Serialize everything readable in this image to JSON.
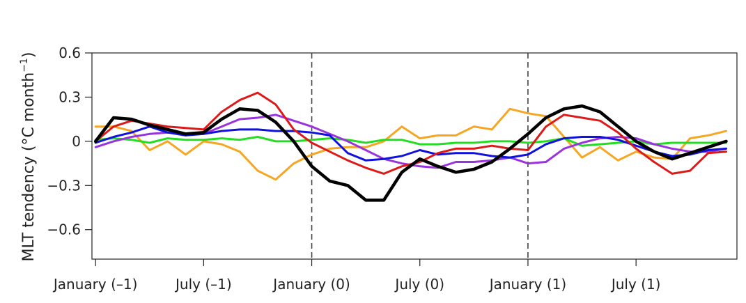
{
  "chart_data": {
    "type": "line",
    "ylabel_main": "MLT tendency (°C month",
    "ylabel_sup": "−1",
    "ylabel_close": ")",
    "ylim": [
      -0.8,
      0.6
    ],
    "yticks": [
      {
        "value": 0.6,
        "label": "0.6"
      },
      {
        "value": 0.3,
        "label": "0.3"
      },
      {
        "value": 0,
        "label": "0"
      },
      {
        "value": -0.3,
        "label": "−0.3"
      },
      {
        "value": -0.6,
        "label": "−0.6"
      }
    ],
    "xlim": [
      -0.2,
      35.6
    ],
    "xticks": [
      {
        "value": 0,
        "label": "January (–1)"
      },
      {
        "value": 6,
        "label": "July (–1)"
      },
      {
        "value": 12,
        "label": "January (0)"
      },
      {
        "value": 18,
        "label": "July (0)"
      },
      {
        "value": 24,
        "label": "January (1)"
      },
      {
        "value": 30,
        "label": "July (1)"
      }
    ],
    "vlines": [
      12,
      24
    ],
    "grid": false,
    "series": [
      {
        "color": "#f5a623",
        "width": 3,
        "values": [
          0.1,
          0.1,
          0.07,
          -0.06,
          0.0,
          -0.09,
          0.0,
          -0.02,
          -0.07,
          -0.2,
          -0.26,
          -0.15,
          -0.09,
          -0.05,
          -0.04,
          -0.04,
          0.0,
          0.1,
          0.02,
          0.04,
          0.04,
          0.1,
          0.08,
          0.22,
          0.19,
          0.17,
          0.03,
          -0.11,
          -0.04,
          -0.13,
          -0.07,
          -0.11,
          -0.12,
          0.02,
          0.04,
          0.07
        ]
      },
      {
        "color": "#22dd22",
        "width": 3,
        "values": [
          0.01,
          0.02,
          0.01,
          -0.01,
          0.02,
          0.01,
          0.01,
          0.02,
          0.01,
          0.03,
          0.0,
          0.0,
          0.01,
          0.02,
          0.01,
          -0.01,
          0.01,
          0.01,
          -0.02,
          -0.02,
          -0.01,
          -0.01,
          0.0,
          0.0,
          -0.01,
          0.0,
          0.02,
          -0.03,
          -0.02,
          -0.01,
          0.0,
          -0.02,
          -0.01,
          -0.01,
          -0.01,
          -0.01
        ]
      },
      {
        "color": "#9933dd",
        "width": 3,
        "values": [
          -0.04,
          0.0,
          0.03,
          0.05,
          0.06,
          0.05,
          0.05,
          0.1,
          0.15,
          0.16,
          0.18,
          0.14,
          0.1,
          0.05,
          0.0,
          -0.06,
          -0.12,
          -0.15,
          -0.17,
          -0.18,
          -0.14,
          -0.14,
          -0.13,
          -0.11,
          -0.15,
          -0.14,
          -0.05,
          -0.01,
          0.02,
          0.03,
          0.02,
          -0.02,
          -0.05,
          -0.07,
          -0.07,
          -0.05
        ]
      },
      {
        "color": "#1111dd",
        "width": 3,
        "values": [
          -0.01,
          0.03,
          0.06,
          0.1,
          0.06,
          0.04,
          0.05,
          0.07,
          0.08,
          0.08,
          0.07,
          0.07,
          0.06,
          0.04,
          -0.08,
          -0.13,
          -0.12,
          -0.1,
          -0.06,
          -0.09,
          -0.08,
          -0.08,
          -0.1,
          -0.11,
          -0.09,
          -0.02,
          0.02,
          0.03,
          0.03,
          0.01,
          -0.03,
          -0.07,
          -0.1,
          -0.09,
          -0.06,
          -0.05
        ]
      },
      {
        "color": "#dd1a1a",
        "width": 3,
        "values": [
          0.0,
          0.1,
          0.14,
          0.12,
          0.1,
          0.09,
          0.08,
          0.2,
          0.28,
          0.33,
          0.25,
          0.08,
          -0.01,
          -0.07,
          -0.13,
          -0.18,
          -0.22,
          -0.17,
          -0.14,
          -0.08,
          -0.05,
          -0.05,
          -0.03,
          -0.05,
          -0.06,
          0.1,
          0.18,
          0.16,
          0.14,
          0.06,
          -0.05,
          -0.14,
          -0.22,
          -0.2,
          -0.08,
          -0.07
        ]
      },
      {
        "color": "#000000",
        "width": 4.5,
        "values": [
          0.0,
          0.16,
          0.15,
          0.11,
          0.08,
          0.05,
          0.06,
          0.15,
          0.22,
          0.21,
          0.13,
          0.0,
          -0.17,
          -0.27,
          -0.3,
          -0.4,
          -0.4,
          -0.21,
          -0.12,
          -0.17,
          -0.21,
          -0.19,
          -0.14,
          -0.05,
          0.05,
          0.16,
          0.22,
          0.24,
          0.2,
          0.1,
          0.0,
          -0.07,
          -0.12,
          -0.08,
          -0.04,
          0.0
        ]
      }
    ]
  }
}
